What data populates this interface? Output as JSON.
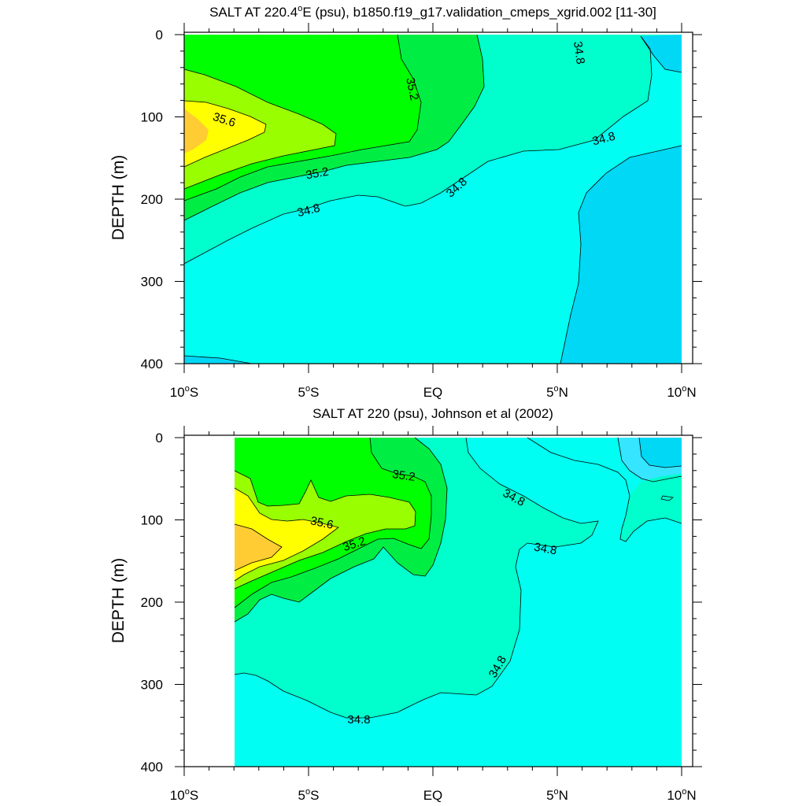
{
  "colors": {
    "le_34_5": "#00d8f5",
    "34_5_34_6": "#36e5ff",
    "34_6_34_8": "#00fff2",
    "34_8_35_0": "#00ffcc",
    "35_0_35_2": "#00ee44",
    "35_2_35_4": "#00ff00",
    "35_4_35_6": "#99ff00",
    "35_6_35_8": "#ffff00",
    "gt_35_8": "#ffcc33",
    "missing": "#ffffff"
  },
  "chart_data": [
    {
      "type": "contour",
      "title": "SALT AT 220.4°E (psu), b1850.f19_g17.validation_cmeps_xgrid.002 [11-30]",
      "title_parts": {
        "prefix": "SALT AT 220.4",
        "degree_sup": "o",
        "suffix": "E (psu), b1850.f19_g17.validation_cmeps_xgrid.002 [11-30]"
      },
      "ylabel": "DEPTH (m)",
      "xlabel": "",
      "xlim": [
        -10,
        10
      ],
      "ylim": [
        400,
        0
      ],
      "x_ticks": [
        {
          "value": -10,
          "label": "10",
          "sup": "o",
          "hemi": "S"
        },
        {
          "value": -5,
          "label": "5",
          "sup": "o",
          "hemi": "S"
        },
        {
          "value": 0,
          "label": "EQ",
          "sup": "",
          "hemi": ""
        },
        {
          "value": 5,
          "label": "5",
          "sup": "o",
          "hemi": "N"
        },
        {
          "value": 10,
          "label": "10",
          "sup": "o",
          "hemi": "N"
        }
      ],
      "y_ticks": [
        "0",
        "100",
        "200",
        "300",
        "400"
      ],
      "contour_labels": [
        "35.6",
        "35.2",
        "35.2",
        "34.8",
        "34.8",
        "34.8",
        "34.8"
      ]
    },
    {
      "type": "contour",
      "title": "SALT AT 220 (psu), Johnson et al (2002)",
      "ylabel": "DEPTH (m)",
      "xlabel": "",
      "xlim": [
        -10,
        10
      ],
      "ylim": [
        400,
        0
      ],
      "x_ticks": [
        {
          "value": -10,
          "label": "10",
          "sup": "o",
          "hemi": "S"
        },
        {
          "value": -5,
          "label": "5",
          "sup": "o",
          "hemi": "S"
        },
        {
          "value": 0,
          "label": "EQ",
          "sup": "",
          "hemi": ""
        },
        {
          "value": 5,
          "label": "5",
          "sup": "o",
          "hemi": "N"
        },
        {
          "value": 10,
          "label": "10",
          "sup": "o",
          "hemi": "N"
        }
      ],
      "y_ticks": [
        "0",
        "100",
        "200",
        "300",
        "400"
      ],
      "contour_labels": [
        "35.2",
        "35.6",
        "35.2",
        "34.8",
        "34.8",
        "34.8",
        "34.8"
      ]
    }
  ]
}
